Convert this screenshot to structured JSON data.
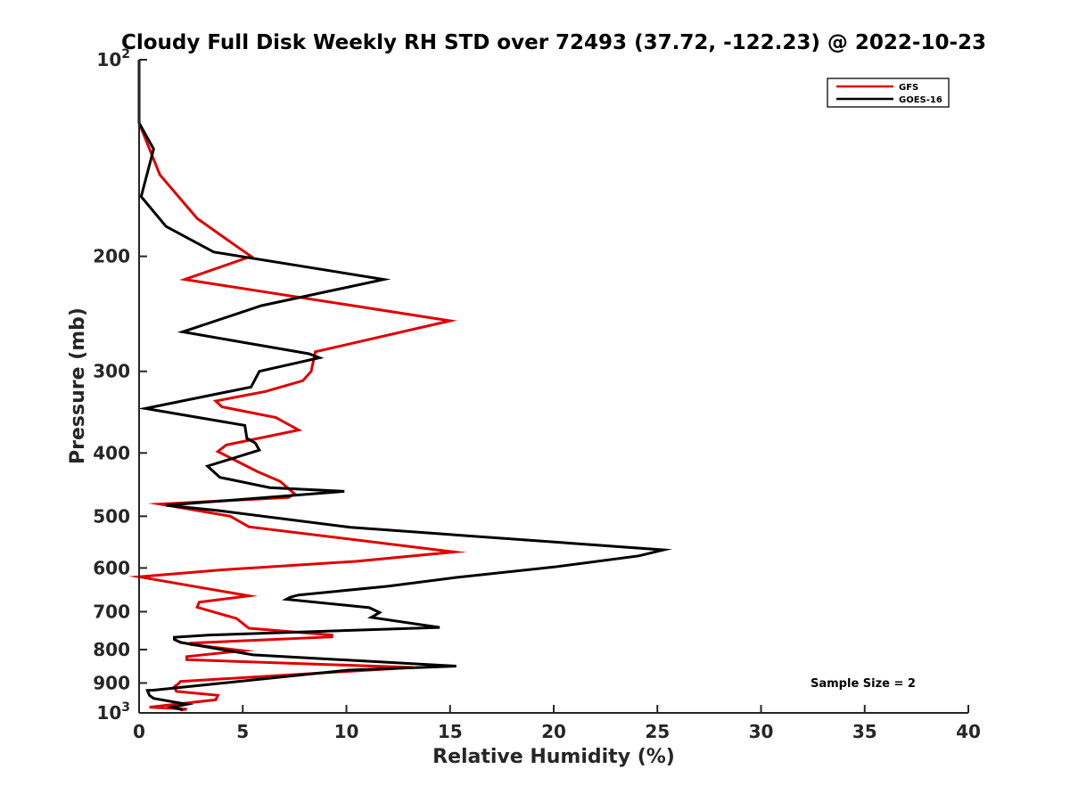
{
  "chart_data": {
    "type": "line",
    "title": "Cloudy Full Disk Weekly RH STD over 72493 (37.72, -122.23) @ 2022-10-23",
    "xlabel": "Relative Humidity (%)",
    "ylabel": "Pressure (mb)",
    "xlim": [
      0,
      40
    ],
    "ylim": [
      100,
      1000
    ],
    "y_scale": "log",
    "y_reversed": true,
    "x_ticks": [
      "0",
      "5",
      "10",
      "15",
      "20",
      "25",
      "30",
      "35",
      "40"
    ],
    "y_ticks": [
      {
        "value": 100,
        "base": "10",
        "exp": "2"
      },
      {
        "value": 200,
        "label": "200"
      },
      {
        "value": 300,
        "label": "300"
      },
      {
        "value": 400,
        "label": "400"
      },
      {
        "value": 500,
        "label": "500"
      },
      {
        "value": 600,
        "label": "600"
      },
      {
        "value": 700,
        "label": "700"
      },
      {
        "value": 800,
        "label": "800"
      },
      {
        "value": 900,
        "label": "900"
      },
      {
        "value": 1000,
        "base": "10",
        "exp": "3"
      }
    ],
    "legend_position": "top-right",
    "grid": false,
    "annotation": "Sample Size = 2",
    "series": [
      {
        "name": "GFS",
        "color": "#e00000",
        "points": [
          [
            0,
            100
          ],
          [
            0,
            125
          ],
          [
            1,
            150
          ],
          [
            2.8,
            175
          ],
          [
            4.6,
            192
          ],
          [
            5.4,
            200
          ],
          [
            2.2,
            217
          ],
          [
            15,
            251
          ],
          [
            8.5,
            280
          ],
          [
            8.4,
            290
          ],
          [
            8.3,
            300
          ],
          [
            7.9,
            310
          ],
          [
            6.1,
            322
          ],
          [
            3.7,
            333
          ],
          [
            4.0,
            340
          ],
          [
            6.6,
            353
          ],
          [
            7.7,
            369
          ],
          [
            4.2,
            389
          ],
          [
            3.8,
            398
          ],
          [
            4.8,
            413
          ],
          [
            5.7,
            427
          ],
          [
            6.8,
            442
          ],
          [
            7.5,
            462
          ],
          [
            7.2,
            468
          ],
          [
            1.0,
            479
          ],
          [
            4.4,
            500
          ],
          [
            5.3,
            519
          ],
          [
            15.2,
            567
          ],
          [
            10.5,
            586
          ],
          [
            4.0,
            604
          ],
          [
            0,
            619
          ],
          [
            5.3,
            662
          ],
          [
            2.9,
            677
          ],
          [
            2.8,
            689
          ],
          [
            4.7,
            717
          ],
          [
            5.3,
            742
          ],
          [
            9.3,
            760
          ],
          [
            9.3,
            765
          ],
          [
            2.5,
            782
          ],
          [
            2.5,
            786
          ],
          [
            5.0,
            803
          ],
          [
            2.3,
            820
          ],
          [
            2.3,
            829
          ],
          [
            13.2,
            852
          ],
          [
            2.0,
            895
          ],
          [
            1.9,
            902
          ],
          [
            1.7,
            912
          ],
          [
            1.8,
            927
          ],
          [
            3.8,
            940
          ],
          [
            3.7,
            955
          ],
          [
            0.5,
            980
          ],
          [
            2.3,
            987
          ],
          [
            2.0,
            990
          ]
        ]
      },
      {
        "name": "GOES-16",
        "color": "#000000",
        "points": [
          [
            0,
            100
          ],
          [
            0,
            125
          ],
          [
            0.7,
            137
          ],
          [
            0.1,
            162
          ],
          [
            1.3,
            180
          ],
          [
            3.6,
            197
          ],
          [
            11.8,
            217
          ],
          [
            5.9,
            238
          ],
          [
            2.1,
            261
          ],
          [
            8.2,
            282
          ],
          [
            8.7,
            286
          ],
          [
            5.8,
            300
          ],
          [
            5.4,
            317
          ],
          [
            0.3,
            342
          ],
          [
            5.1,
            363
          ],
          [
            5.2,
            380
          ],
          [
            5.6,
            386
          ],
          [
            5.8,
            396
          ],
          [
            3.3,
            419
          ],
          [
            3.9,
            436
          ],
          [
            6.3,
            452
          ],
          [
            9.9,
            458
          ],
          [
            1.3,
            481
          ],
          [
            3.8,
            490
          ],
          [
            10.2,
            520
          ],
          [
            25.3,
            563
          ],
          [
            24.1,
            575
          ],
          [
            20.0,
            598
          ],
          [
            15.2,
            621
          ],
          [
            12.0,
            640
          ],
          [
            7.7,
            660
          ],
          [
            7.3,
            665
          ],
          [
            7.1,
            670
          ],
          [
            11.1,
            690
          ],
          [
            11.6,
            702
          ],
          [
            11.2,
            714
          ],
          [
            14.5,
            740
          ],
          [
            3.4,
            760
          ],
          [
            1.7,
            766
          ],
          [
            1.7,
            772
          ],
          [
            2.0,
            780
          ],
          [
            5.5,
            815
          ],
          [
            15.3,
            848
          ],
          [
            10.1,
            860
          ],
          [
            0.7,
            923
          ],
          [
            0.4,
            924
          ],
          [
            0.5,
            940
          ],
          [
            0.7,
            950
          ],
          [
            2.3,
            970
          ],
          [
            1.6,
            980
          ],
          [
            2.1,
            989
          ]
        ]
      }
    ]
  }
}
